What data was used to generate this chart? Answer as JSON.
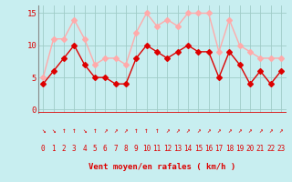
{
  "x": [
    0,
    1,
    2,
    3,
    4,
    5,
    6,
    7,
    8,
    9,
    10,
    11,
    12,
    13,
    14,
    15,
    16,
    17,
    18,
    19,
    20,
    21,
    22,
    23
  ],
  "wind_avg": [
    4,
    6,
    8,
    10,
    7,
    5,
    5,
    4,
    4,
    8,
    10,
    9,
    8,
    9,
    10,
    9,
    9,
    5,
    9,
    7,
    4,
    6,
    4,
    6
  ],
  "wind_gust": [
    5,
    11,
    11,
    14,
    11,
    7,
    8,
    8,
    7,
    12,
    15,
    13,
    14,
    13,
    15,
    15,
    15,
    9,
    14,
    10,
    9,
    8,
    8,
    8
  ],
  "avg_color": "#dd0000",
  "gust_color": "#ffaaaa",
  "bg_color": "#c8eef0",
  "grid_color": "#a0ccc8",
  "xlabel": "Vent moyen/en rafales ( km/h )",
  "tick_color": "#dd0000",
  "yticks": [
    0,
    5,
    10,
    15
  ],
  "ylim": [
    -0.5,
    16.2
  ],
  "xlim": [
    -0.5,
    23.5
  ],
  "marker_size": 3,
  "line_width": 1.0,
  "wind_dirs": [
    "↘",
    "↘",
    "↑",
    "↑",
    "↘",
    "↑",
    "↗",
    "↗",
    "↗",
    "↑",
    "↑",
    "↑",
    "↗",
    "↗",
    "↗",
    "↗",
    "↗",
    "↗",
    "↗",
    "↗",
    "↗",
    "↗",
    "↗",
    "↗"
  ]
}
